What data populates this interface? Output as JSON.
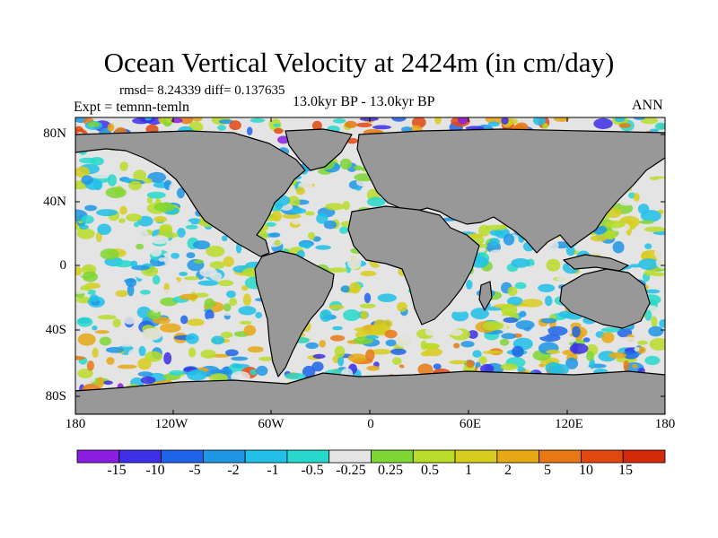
{
  "title": "Ocean Vertical Velocity at 2424m (in cm/day)",
  "stats": "rmsd= 8.24339 diff= 0.137635",
  "experiment": "Expt = temnn-temln",
  "period": "13.0kyr BP - 13.0kyr BP",
  "season": "ANN",
  "lat_labels": [
    "80N",
    "40N",
    "0",
    "40S",
    "80S"
  ],
  "lon_labels": [
    "180",
    "120W",
    "60W",
    "0",
    "60E",
    "120E",
    "180"
  ],
  "colorbar": {
    "colors": [
      "#8a1ee0",
      "#3c2fe6",
      "#1e64e8",
      "#1e96e6",
      "#20c0e8",
      "#27d8cc",
      "#e4e4e4",
      "#7ed632",
      "#b8dc28",
      "#d8cc1e",
      "#e6a814",
      "#e87814",
      "#e04810",
      "#d42a0a"
    ],
    "labels": [
      "-15",
      "-10",
      "-5",
      "-2",
      "-1",
      "-0.5",
      "-0.25",
      "0.25",
      "0.5",
      "1",
      "2",
      "5",
      "10",
      "15"
    ]
  },
  "colors": {
    "land": "#989898",
    "ocean_neutral": "#e4e4e4",
    "coast": "#000000"
  }
}
